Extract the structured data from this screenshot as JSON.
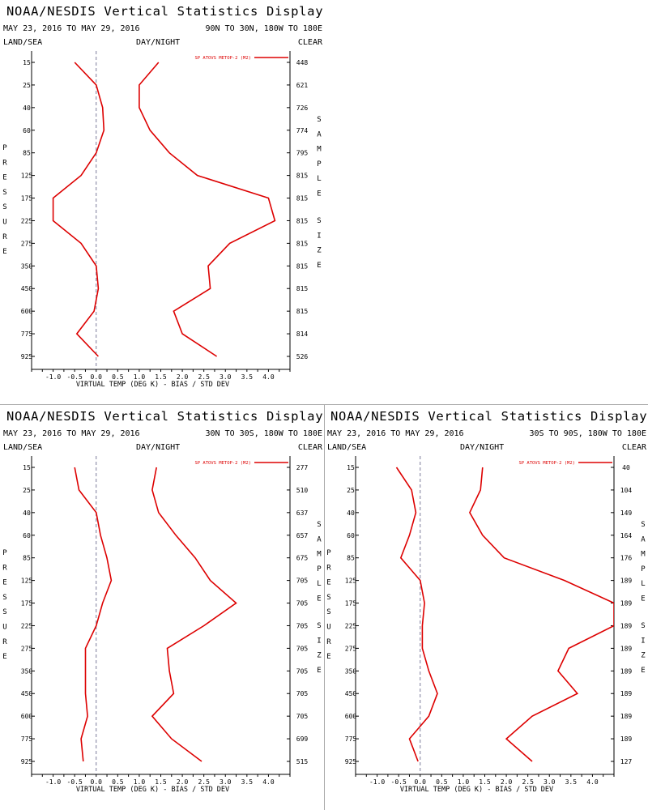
{
  "title": "NOAA/NESDIS Vertical Statistics Display",
  "dates": "MAY 23, 2016 TO MAY 29, 2016",
  "label_land_sea": "LAND/SEA",
  "label_day_night": "DAY/NIGHT",
  "label_clear": "CLEAR",
  "pressure_letters": [
    "P",
    "R",
    "E",
    "S",
    "S",
    "U",
    "R",
    "E"
  ],
  "sample_letters": [
    "S",
    "A",
    "M",
    "P",
    "L",
    "E"
  ],
  "size_letters": [
    "S",
    "I",
    "Z",
    "E"
  ],
  "colors": {
    "series": "#dd0000",
    "zero_line": "#7a7a9a",
    "separator": "#a9a9a9"
  },
  "chart_data": [
    {
      "type": "line",
      "region": "90N TO 30N, 180W TO 180E",
      "legend": "SP ATOVS METOP-2 (M2)",
      "legend_position": "top-right",
      "xlabel": "VIRTUAL TEMP (DEG K) - BIAS / STD DEV",
      "ylabel": "PRESSURE",
      "y2label": "SAMPLE SIZE",
      "xlim": [
        -1.5,
        4.5
      ],
      "x_ticks": [
        "-1.0",
        "-0.5",
        "0.0",
        "0.5",
        "1.0",
        "1.5",
        "2.0",
        "2.5",
        "3.0",
        "3.5",
        "4.0"
      ],
      "pressure_levels": [
        "15",
        "25",
        "40",
        "60",
        "85",
        "125",
        "175",
        "225",
        "275",
        "350",
        "450",
        "600",
        "775",
        "925"
      ],
      "sample_size": [
        "448",
        "621",
        "726",
        "774",
        "795",
        "815",
        "815",
        "815",
        "815",
        "815",
        "815",
        "815",
        "814",
        "526"
      ],
      "series": [
        {
          "name": "BIAS",
          "values": [
            -0.5,
            0.0,
            0.15,
            0.18,
            0.0,
            -0.35,
            -1.0,
            -1.0,
            -0.35,
            0.0,
            0.05,
            -0.05,
            -0.45,
            0.05
          ]
        },
        {
          "name": "STD DEV",
          "values": [
            1.45,
            1.0,
            1.0,
            1.25,
            1.7,
            2.35,
            4.0,
            4.15,
            3.1,
            2.6,
            2.65,
            1.8,
            2.0,
            2.8
          ]
        }
      ]
    },
    {
      "type": "line",
      "region": "30N TO 30S, 180W TO 180E",
      "legend": "SP ATOVS METOP-2 (M2)",
      "legend_position": "top-right",
      "xlabel": "VIRTUAL TEMP (DEG K) - BIAS / STD DEV",
      "ylabel": "PRESSURE",
      "y2label": "SAMPLE SIZE",
      "xlim": [
        -1.5,
        4.5
      ],
      "x_ticks": [
        "-1.0",
        "-0.5",
        "0.0",
        "0.5",
        "1.0",
        "1.5",
        "2.0",
        "2.5",
        "3.0",
        "3.5",
        "4.0"
      ],
      "pressure_levels": [
        "15",
        "25",
        "40",
        "60",
        "85",
        "125",
        "175",
        "225",
        "275",
        "350",
        "450",
        "600",
        "775",
        "925"
      ],
      "sample_size": [
        "277",
        "510",
        "637",
        "657",
        "675",
        "705",
        "705",
        "705",
        "705",
        "705",
        "705",
        "705",
        "699",
        "515"
      ],
      "series": [
        {
          "name": "BIAS",
          "values": [
            -0.5,
            -0.4,
            0.0,
            0.1,
            0.25,
            0.35,
            0.15,
            0.0,
            -0.25,
            -0.25,
            -0.25,
            -0.2,
            -0.35,
            -0.3
          ]
        },
        {
          "name": "STD DEV",
          "values": [
            1.4,
            1.3,
            1.45,
            1.85,
            2.3,
            2.65,
            3.25,
            2.5,
            1.65,
            1.7,
            1.8,
            1.3,
            1.75,
            2.45
          ]
        }
      ]
    },
    {
      "type": "line",
      "region": "30S TO 90S, 180W TO 180E",
      "legend": "SP ATOVS METOP-2 (M2)",
      "legend_position": "top-right",
      "xlabel": "VIRTUAL TEMP (DEG K) - BIAS / STD DEV",
      "ylabel": "PRESSURE",
      "y2label": "SAMPLE SIZE",
      "xlim": [
        -1.5,
        4.5
      ],
      "x_ticks": [
        "-1.0",
        "-0.5",
        "0.0",
        "0.5",
        "1.0",
        "1.5",
        "2.0",
        "2.5",
        "3.0",
        "3.5",
        "4.0"
      ],
      "pressure_levels": [
        "15",
        "25",
        "40",
        "60",
        "85",
        "125",
        "175",
        "225",
        "275",
        "350",
        "450",
        "600",
        "775",
        "925"
      ],
      "sample_size": [
        "40",
        "104",
        "149",
        "164",
        "176",
        "189",
        "189",
        "189",
        "189",
        "189",
        "189",
        "189",
        "189",
        "127"
      ],
      "series": [
        {
          "name": "BIAS",
          "values": [
            -0.55,
            -0.2,
            -0.1,
            -0.25,
            -0.45,
            0.0,
            0.1,
            0.05,
            0.05,
            0.2,
            0.4,
            0.2,
            -0.25,
            -0.05
          ]
        },
        {
          "name": "STD DEV",
          "values": [
            1.45,
            1.4,
            1.15,
            1.45,
            1.95,
            3.35,
            4.5,
            4.5,
            3.45,
            3.2,
            3.65,
            2.6,
            2.0,
            2.6
          ]
        }
      ]
    }
  ]
}
